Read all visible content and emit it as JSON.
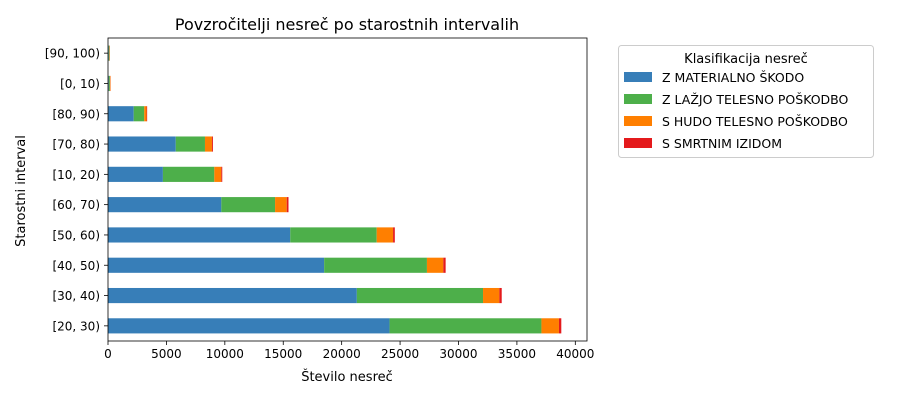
{
  "chart_data": {
    "type": "bar",
    "orientation": "horizontal",
    "stacked": true,
    "title": "Povzročitelji nesreč po starostnih intervalih",
    "xlabel": "Število nesreč",
    "ylabel": "Starostni interval",
    "xlim": [
      0,
      41000
    ],
    "xticks": [
      0,
      5000,
      10000,
      15000,
      20000,
      25000,
      30000,
      35000,
      40000
    ],
    "grid": false,
    "legend": {
      "title": "Klasifikacija nesreč",
      "placement": "outside-right-top"
    },
    "categories": [
      "[20, 30)",
      "[30, 40)",
      "[40, 50)",
      "[50, 60)",
      "[60, 70)",
      "[10, 20)",
      "[70, 80)",
      "[80, 90)",
      "[0, 10)",
      "[90, 100)"
    ],
    "series": [
      {
        "name": "Z MATERIALNO ŠKODO",
        "color": "#377eb8",
        "values": [
          24100,
          21300,
          18500,
          15600,
          9700,
          4700,
          5800,
          2200,
          70,
          60
        ]
      },
      {
        "name": "Z LAŽJO TELESNO POŠKODBO",
        "color": "#4daf4a",
        "values": [
          13000,
          10800,
          8800,
          7400,
          4600,
          4400,
          2500,
          900,
          90,
          60
        ]
      },
      {
        "name": "S HUDO TELESNO POŠKODBO",
        "color": "#ff7f00",
        "values": [
          1500,
          1400,
          1400,
          1400,
          1000,
          600,
          600,
          200,
          50,
          30
        ]
      },
      {
        "name": "S SMRTNIM IZIDOM",
        "color": "#e41a1c",
        "values": [
          200,
          200,
          200,
          150,
          150,
          80,
          80,
          50,
          10,
          10
        ]
      }
    ]
  }
}
